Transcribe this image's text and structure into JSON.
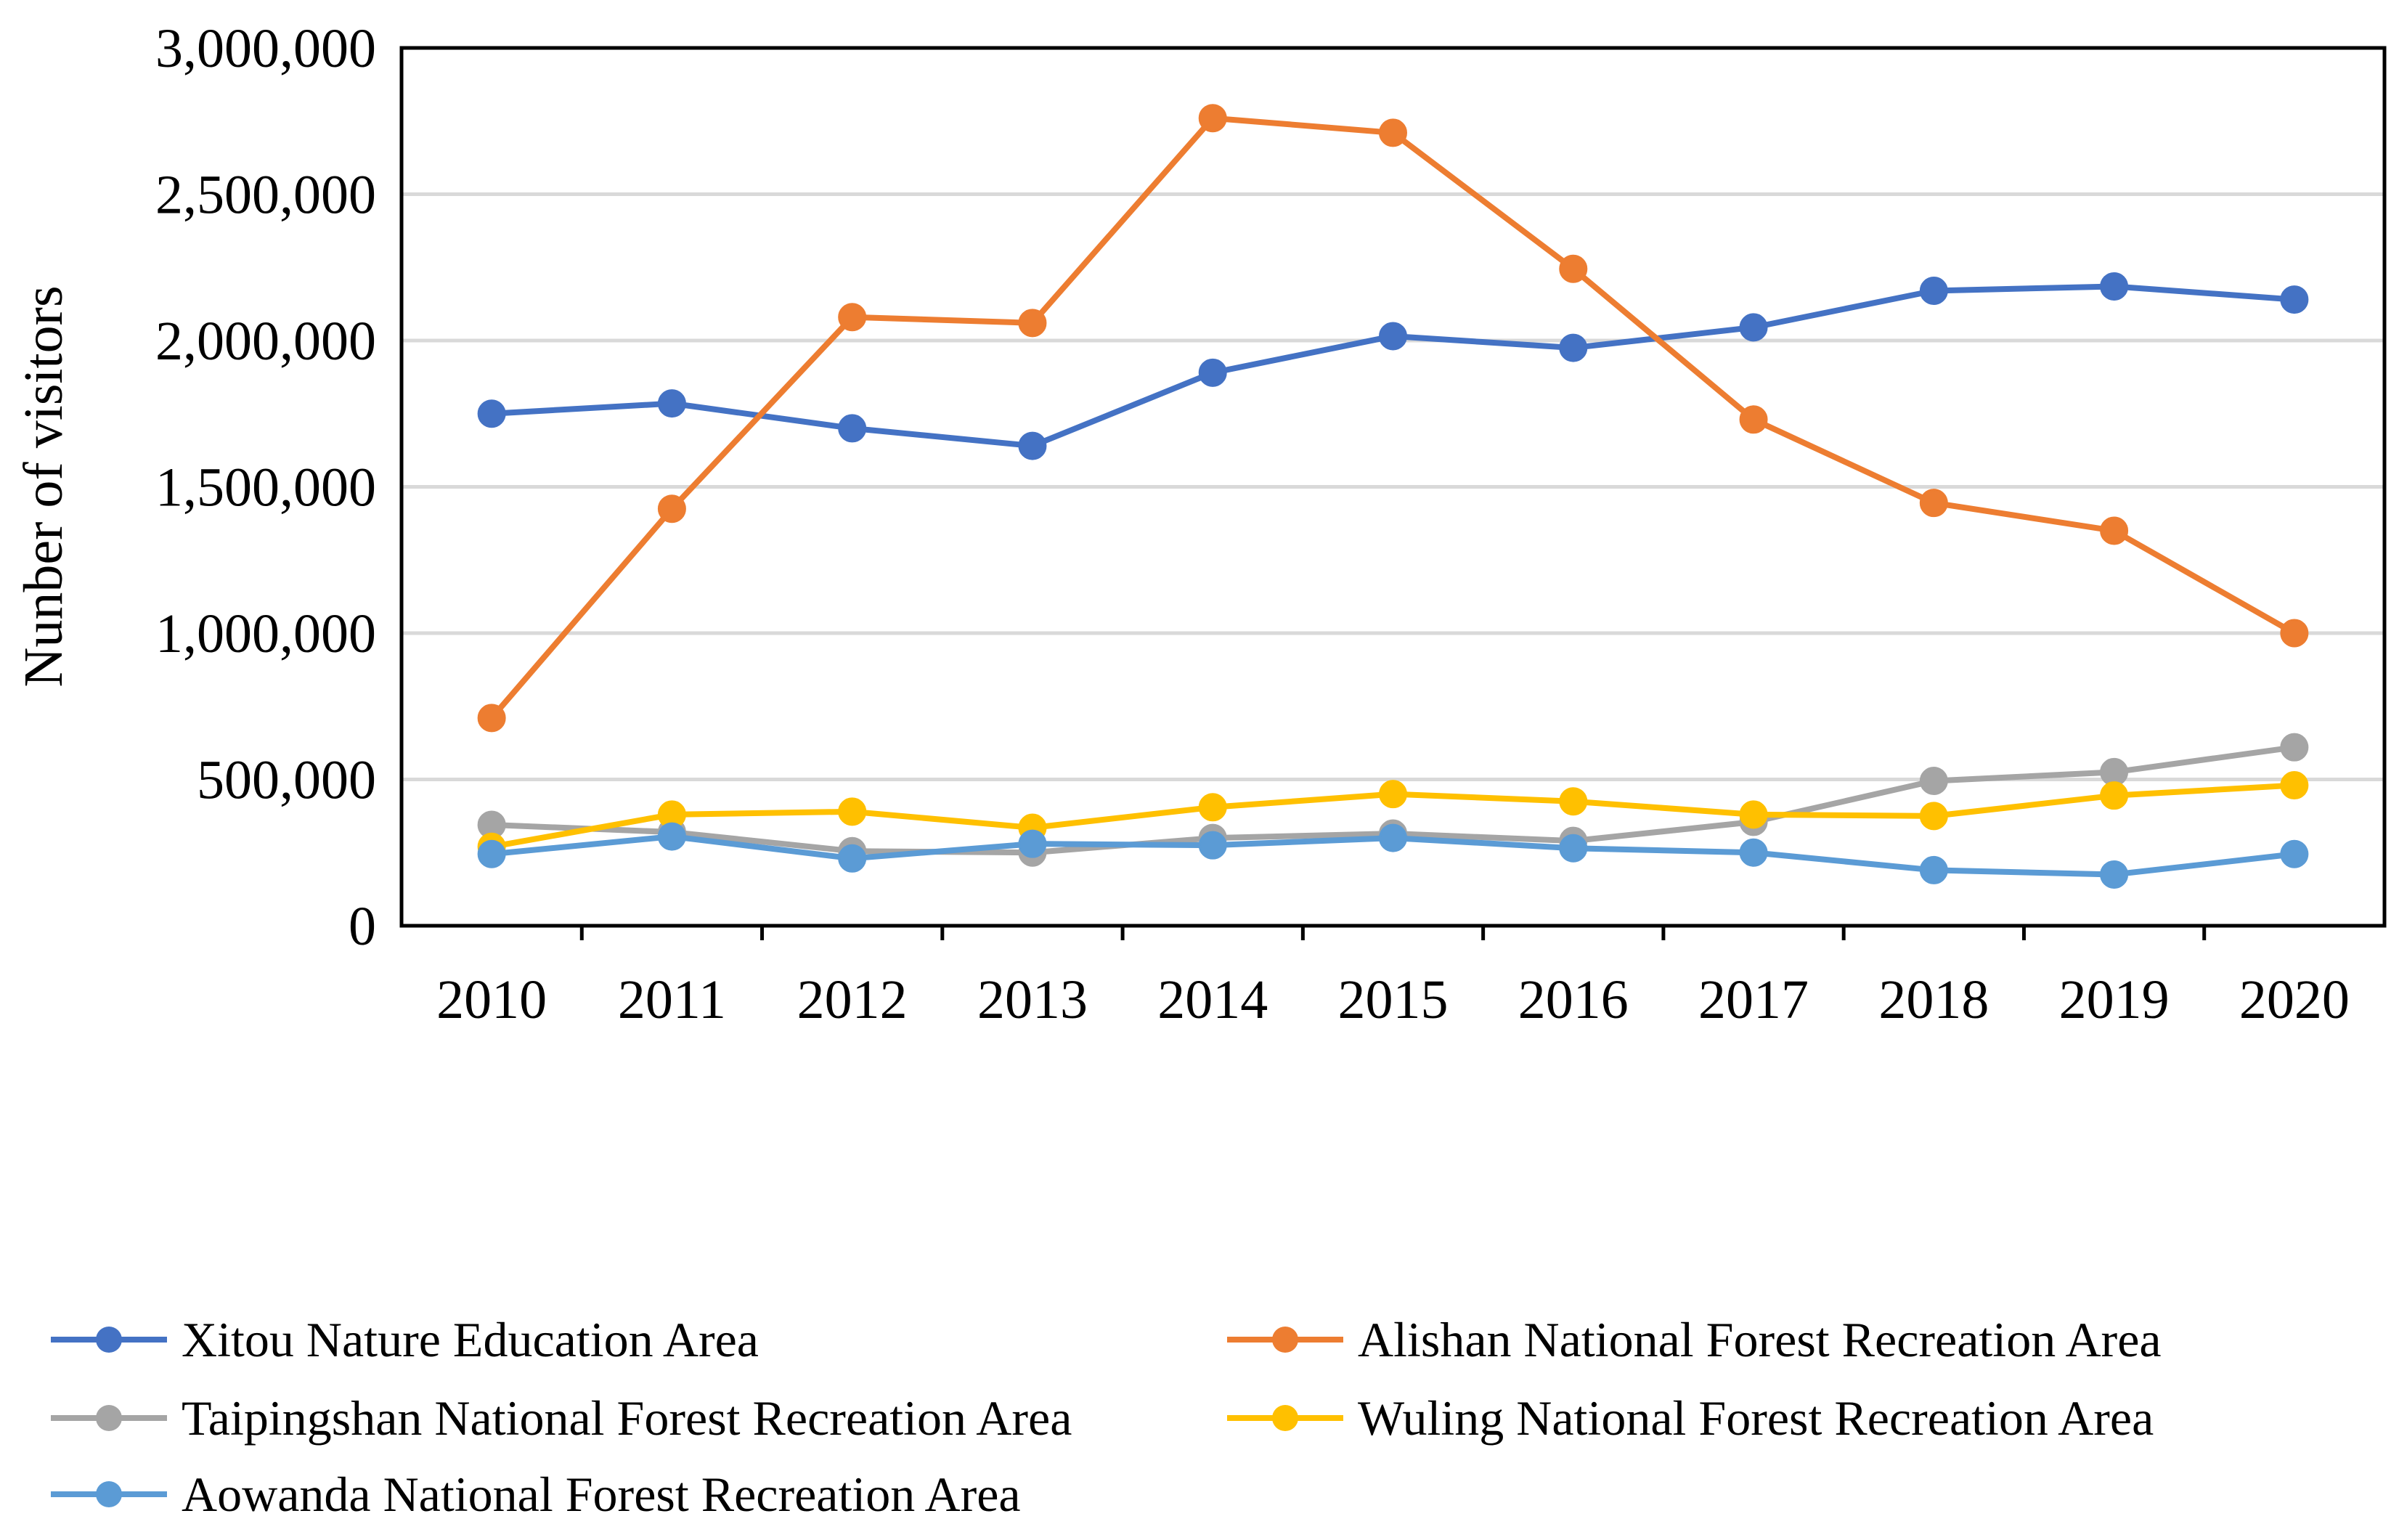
{
  "chart_data": {
    "type": "line",
    "title": "",
    "xlabel": "",
    "ylabel": "Nunber of visitors",
    "categories": [
      "2010",
      "2011",
      "2012",
      "2013",
      "2014",
      "2015",
      "2016",
      "2017",
      "2018",
      "2019",
      "2020"
    ],
    "ylim": [
      0,
      3000000
    ],
    "y_ticks": [
      0,
      500000,
      1000000,
      1500000,
      2000000,
      2500000,
      3000000
    ],
    "y_tick_labels": [
      "0",
      "500,000",
      "1,000,000",
      "1,500,000",
      "2,000,000",
      "2,500,000",
      "3,000,000"
    ],
    "grid": true,
    "legend_position": "bottom",
    "series": [
      {
        "name": "Xitou Nature Education Area",
        "color": "#4472C4",
        "values": [
          1750000,
          1785000,
          1700000,
          1640000,
          1890000,
          2015000,
          1975000,
          2045000,
          2170000,
          2185000,
          2140000
        ]
      },
      {
        "name": "Alishan National Forest Recreation Area",
        "color": "#ED7D31",
        "values": [
          710000,
          1425000,
          2080000,
          2060000,
          2760000,
          2710000,
          2245000,
          1730000,
          1445000,
          1350000,
          1000000
        ]
      },
      {
        "name": "Taipingshan National Forest Recreation Area",
        "color": "#A5A5A5",
        "values": [
          345000,
          320000,
          255000,
          250000,
          300000,
          315000,
          290000,
          355000,
          495000,
          525000,
          610000
        ]
      },
      {
        "name": "Wuling National Forest Recreation Area",
        "color": "#FFC000",
        "values": [
          270000,
          380000,
          390000,
          335000,
          405000,
          450000,
          425000,
          380000,
          375000,
          445000,
          480000
        ]
      },
      {
        "name": "Aowanda National Forest Recreation Area",
        "color": "#5B9BD5",
        "values": [
          245000,
          305000,
          230000,
          280000,
          275000,
          300000,
          265000,
          250000,
          190000,
          175000,
          245000
        ]
      }
    ]
  }
}
